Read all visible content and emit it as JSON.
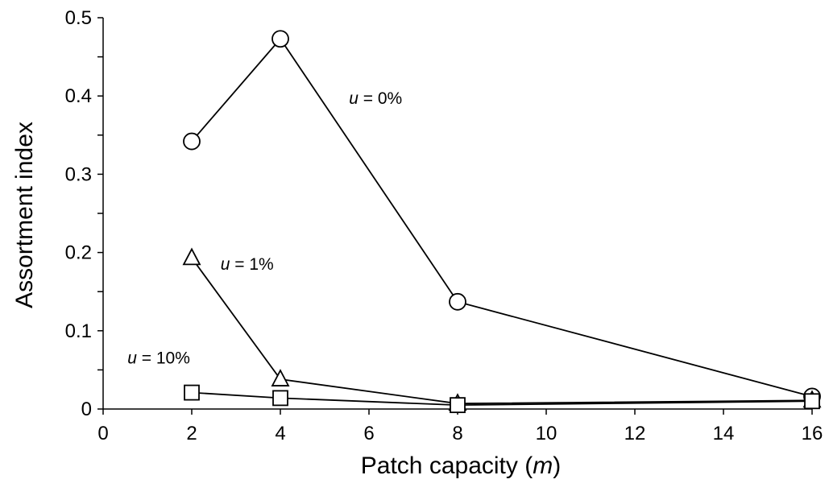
{
  "chart_data": {
    "type": "line",
    "title": "",
    "xlabel": "Patch capacity (m)",
    "xlabel_parts": {
      "before": "Patch capacity (",
      "italic": "m",
      "after": ")"
    },
    "ylabel": "Assortment index",
    "xlim": [
      0,
      16
    ],
    "ylim": [
      0,
      0.5
    ],
    "xticks": [
      0,
      2,
      4,
      6,
      8,
      10,
      12,
      14,
      16
    ],
    "xtick_labels": [
      "0",
      "2",
      "4",
      "6",
      "8",
      "10",
      "12",
      "14",
      "16"
    ],
    "yticks": [
      0,
      0.1,
      0.2,
      0.3,
      0.4,
      0.5
    ],
    "ytick_labels": [
      "0",
      "0.1",
      "0.2",
      "0.3",
      "0.4",
      "0.5"
    ],
    "grid": false,
    "legend": "none",
    "series": [
      {
        "marker": "circle",
        "x": [
          2,
          4,
          8,
          16
        ],
        "y": [
          0.342,
          0.473,
          0.137,
          0.016
        ]
      },
      {
        "marker": "triangle",
        "x": [
          2,
          4,
          8,
          16
        ],
        "y": [
          0.193,
          0.038,
          0.007,
          0.011
        ]
      },
      {
        "marker": "square",
        "x": [
          2,
          4,
          8,
          16
        ],
        "y": [
          0.021,
          0.014,
          0.005,
          0.01
        ]
      }
    ],
    "annotations": [
      {
        "italic": "u",
        "rest": " = 0%",
        "x": 5.55,
        "y": 0.39
      },
      {
        "italic": "u",
        "rest": " = 1%",
        "x": 2.65,
        "y": 0.178
      },
      {
        "italic": "u",
        "rest": " = 10%",
        "x": 0.55,
        "y": 0.058
      }
    ]
  }
}
